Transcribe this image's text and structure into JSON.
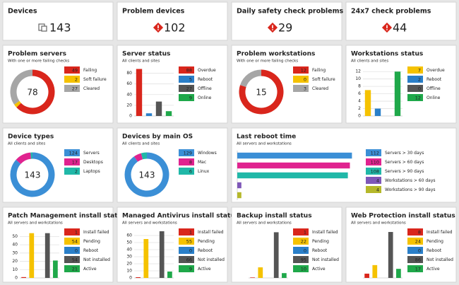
{
  "kpis": [
    {
      "title": "Devices",
      "value": 143,
      "icon": "device"
    },
    {
      "title": "Problem devices",
      "value": 102,
      "icon": "alert"
    },
    {
      "title": "Daily safety check problems",
      "value": 29,
      "icon": "alert"
    },
    {
      "title": "24x7 check problems",
      "value": 44,
      "icon": "alert"
    }
  ],
  "chart_data": [
    {
      "type": "donut",
      "title": "Problem servers",
      "subtitle": "With one or more failing checks",
      "total": 78,
      "categories": [
        "Failing",
        "Soft failure",
        "Cleared"
      ],
      "values": [
        49,
        2,
        27
      ],
      "colors": [
        "#d9261c",
        "#f5c200",
        "#a6a6a6"
      ]
    },
    {
      "type": "bar",
      "title": "Server status",
      "subtitle": "All clients and sites",
      "categories": [
        "Overdue",
        "Reboot",
        "Offline",
        "Online"
      ],
      "values": [
        88,
        5,
        27,
        9
      ],
      "colors": [
        "#d9261c",
        "#2a7fc9",
        "#555555",
        "#1fa84a"
      ],
      "ylim": [
        0,
        90
      ],
      "yticks": [
        0,
        20,
        40,
        60,
        80
      ]
    },
    {
      "type": "donut",
      "title": "Problem workstations",
      "subtitle": "With one or more failing checks",
      "total": 15,
      "categories": [
        "Failing",
        "Soft failure",
        "Cleared"
      ],
      "values": [
        12,
        0,
        3
      ],
      "colors": [
        "#d9261c",
        "#f5c200",
        "#a6a6a6"
      ]
    },
    {
      "type": "bar",
      "title": "Workstations status",
      "subtitle": "All clients and sites",
      "categories": [
        "Overdue",
        "Reboot",
        "Offline",
        "Online"
      ],
      "values": [
        7,
        2,
        0,
        12
      ],
      "colors": [
        "#f5c200",
        "#2a7fc9",
        "#555555",
        "#1fa84a"
      ],
      "ylim": [
        0,
        13
      ],
      "yticks": [
        0,
        2,
        4,
        6,
        8,
        10,
        12
      ]
    },
    {
      "type": "donut",
      "title": "Device types",
      "subtitle": "All clients and sites",
      "total": 143,
      "categories": [
        "Servers",
        "Desktops",
        "Laptops"
      ],
      "values": [
        124,
        17,
        2
      ],
      "colors": [
        "#3b8fd6",
        "#e0238f",
        "#20b8a8"
      ]
    },
    {
      "type": "donut",
      "title": "Devices by main OS",
      "subtitle": "All clients and sites",
      "total": 143,
      "categories": [
        "Windows",
        "Mac",
        "Linux"
      ],
      "values": [
        129,
        8,
        6
      ],
      "colors": [
        "#3b8fd6",
        "#e0238f",
        "#20b8a8"
      ]
    },
    {
      "type": "hbar",
      "title": "Last reboot time",
      "subtitle": "All servers and workstations",
      "categories": [
        "Servers > 30 days",
        "Servers > 60 days",
        "Servers > 90 days",
        "Workstations > 60 days",
        "Workstations > 90 days"
      ],
      "values": [
        112,
        110,
        108,
        4,
        4
      ],
      "colors": [
        "#3b8fd6",
        "#e0238f",
        "#20b8a8",
        "#7e57b8",
        "#b5b82a"
      ],
      "xlim": [
        0,
        120
      ]
    },
    {
      "type": "bar",
      "title": "Patch Management install status",
      "subtitle": "All servers and workstations",
      "categories": [
        "Install failed",
        "Pending",
        "Reboot",
        "Not installed",
        "Active"
      ],
      "values": [
        1,
        54,
        0,
        54,
        21
      ],
      "colors": [
        "#d9261c",
        "#f5c200",
        "#2a7fc9",
        "#555555",
        "#1fa84a"
      ],
      "ylim": [
        0,
        58
      ],
      "yticks": [
        0,
        10,
        20,
        30,
        40,
        50
      ]
    },
    {
      "type": "bar",
      "title": "Managed Antivirus install status",
      "subtitle": "All servers and workstations",
      "categories": [
        "Install failed",
        "Pending",
        "Reboot",
        "Not installed",
        "Active"
      ],
      "values": [
        1,
        55,
        0,
        66,
        9
      ],
      "colors": [
        "#d9261c",
        "#f5c200",
        "#2a7fc9",
        "#555555",
        "#1fa84a"
      ],
      "ylim": [
        0,
        68
      ],
      "yticks": [
        0,
        10,
        20,
        30,
        40,
        50,
        60
      ]
    },
    {
      "type": "bar",
      "title": "Backup install status",
      "subtitle": "All servers and workstations",
      "categories": [
        "Install failed",
        "Pending",
        "Reboot",
        "Not installed",
        "Active"
      ],
      "values": [
        1,
        22,
        0,
        95,
        10
      ],
      "colors": [
        "#d9261c",
        "#f5c200",
        "#2a7fc9",
        "#555555",
        "#1fa84a"
      ],
      "ylim": [
        0,
        100
      ]
    },
    {
      "type": "bar",
      "title": "Web Protection install status",
      "subtitle": "All servers and workstations",
      "categories": [
        "Install failed",
        "Pending",
        "Reboot",
        "Not installed",
        "Active"
      ],
      "values": [
        8,
        24,
        0,
        86,
        17
      ],
      "colors": [
        "#d9261c",
        "#f5c200",
        "#2a7fc9",
        "#555555",
        "#1fa84a"
      ],
      "ylim": [
        0,
        90
      ]
    }
  ]
}
